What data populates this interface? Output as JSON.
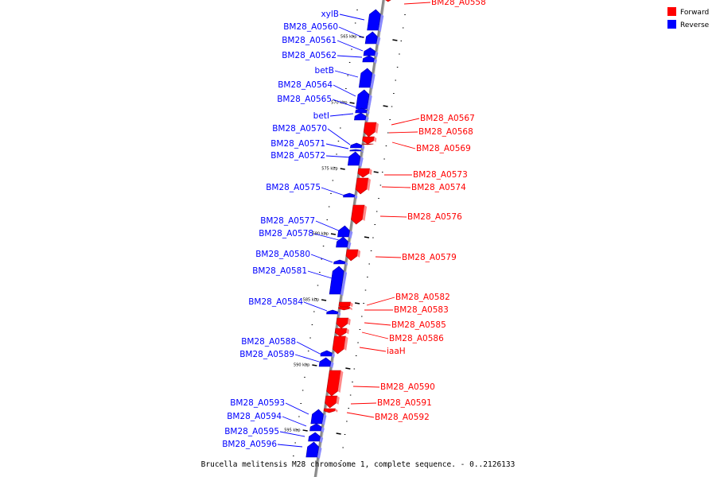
{
  "colors": {
    "forward": "#ff0000",
    "reverse": "#0000ff",
    "backbone": "#8a8a8a"
  },
  "legend": {
    "forward_label": "Forward",
    "reverse_label": "Reverse"
  },
  "caption": "Brucella melitensis M28 chromosome 1, complete sequence. - 0..2126133",
  "ruler": [
    "565 kbp",
    "570 kbp",
    "575 kbp",
    "580 kbp",
    "585 kbp",
    "590 kbp",
    "595 kbp"
  ],
  "features": [
    {
      "name": "BM28_A0558",
      "strand": "forward"
    },
    {
      "name": "xylB",
      "strand": "reverse"
    },
    {
      "name": "BM28_A0560",
      "strand": "reverse"
    },
    {
      "name": "BM28_A0561",
      "strand": "reverse"
    },
    {
      "name": "BM28_A0562",
      "strand": "reverse"
    },
    {
      "name": "betB",
      "strand": "reverse"
    },
    {
      "name": "BM28_A0564",
      "strand": "reverse"
    },
    {
      "name": "BM28_A0565",
      "strand": "reverse"
    },
    {
      "name": "betI",
      "strand": "reverse"
    },
    {
      "name": "BM28_A0567",
      "strand": "forward"
    },
    {
      "name": "BM28_A0568",
      "strand": "forward"
    },
    {
      "name": "BM28_A0569",
      "strand": "forward"
    },
    {
      "name": "BM28_A0570",
      "strand": "reverse"
    },
    {
      "name": "BM28_A0571",
      "strand": "reverse"
    },
    {
      "name": "BM28_A0572",
      "strand": "reverse"
    },
    {
      "name": "BM28_A0573",
      "strand": "forward"
    },
    {
      "name": "BM28_A0574",
      "strand": "forward"
    },
    {
      "name": "BM28_A0575",
      "strand": "reverse"
    },
    {
      "name": "BM28_A0576",
      "strand": "forward"
    },
    {
      "name": "BM28_A0577",
      "strand": "reverse"
    },
    {
      "name": "BM28_A0578",
      "strand": "reverse"
    },
    {
      "name": "BM28_A0579",
      "strand": "forward"
    },
    {
      "name": "BM28_A0580",
      "strand": "reverse"
    },
    {
      "name": "BM28_A0581",
      "strand": "reverse"
    },
    {
      "name": "BM28_A0582",
      "strand": "forward"
    },
    {
      "name": "BM28_A0583",
      "strand": "forward"
    },
    {
      "name": "BM28_A0584",
      "strand": "reverse"
    },
    {
      "name": "BM28_A0585",
      "strand": "forward"
    },
    {
      "name": "BM28_A0586",
      "strand": "forward"
    },
    {
      "name": "iaaH",
      "strand": "forward"
    },
    {
      "name": "BM28_A0588",
      "strand": "reverse"
    },
    {
      "name": "BM28_A0589",
      "strand": "reverse"
    },
    {
      "name": "BM28_A0590",
      "strand": "forward"
    },
    {
      "name": "BM28_A0591",
      "strand": "forward"
    },
    {
      "name": "BM28_A0592",
      "strand": "forward"
    },
    {
      "name": "BM28_A0593",
      "strand": "reverse"
    },
    {
      "name": "BM28_A0594",
      "strand": "reverse"
    },
    {
      "name": "BM28_A0595",
      "strand": "reverse"
    },
    {
      "name": "BM28_A0596",
      "strand": "reverse"
    }
  ]
}
